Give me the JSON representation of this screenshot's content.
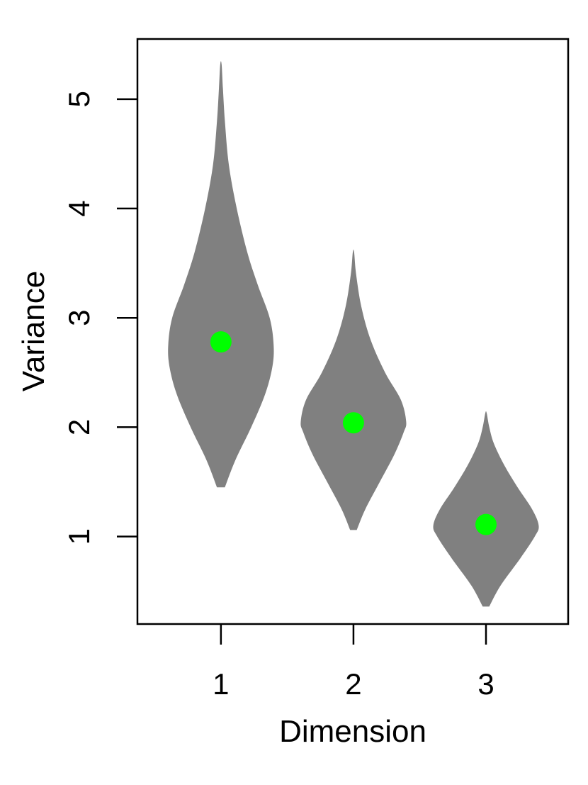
{
  "chart_data": {
    "type": "violin",
    "title": "",
    "xlabel": "Dimension",
    "ylabel": "Variance",
    "x_ticks": [
      "1",
      "2",
      "3"
    ],
    "y_ticks": [
      "1",
      "2",
      "3",
      "4",
      "5"
    ],
    "xlim": [
      0.37,
      3.62
    ],
    "ylim": [
      0.2,
      5.55
    ],
    "grid": false,
    "legend": "none",
    "colors": {
      "violin_fill": "#808080",
      "mean_marker": "#00ff00",
      "axis": "#000000",
      "background": "#ffffff"
    },
    "series": [
      {
        "category": "1",
        "min": 1.45,
        "max": 5.32,
        "mean": 2.78,
        "density_profile": [
          [
            1.45,
            0.06
          ],
          [
            1.7,
            0.22
          ],
          [
            2.0,
            0.46
          ],
          [
            2.3,
            0.67
          ],
          [
            2.55,
            0.78
          ],
          [
            2.75,
            0.8
          ],
          [
            3.0,
            0.74
          ],
          [
            3.3,
            0.56
          ],
          [
            3.6,
            0.4
          ],
          [
            4.0,
            0.24
          ],
          [
            4.4,
            0.12
          ],
          [
            4.8,
            0.06
          ],
          [
            5.1,
            0.03
          ],
          [
            5.32,
            0.01
          ]
        ]
      },
      {
        "category": "2",
        "min": 1.06,
        "max": 3.6,
        "mean": 2.04,
        "density_profile": [
          [
            1.06,
            0.05
          ],
          [
            1.25,
            0.18
          ],
          [
            1.5,
            0.4
          ],
          [
            1.75,
            0.62
          ],
          [
            1.95,
            0.76
          ],
          [
            2.05,
            0.8
          ],
          [
            2.25,
            0.72
          ],
          [
            2.5,
            0.48
          ],
          [
            2.8,
            0.26
          ],
          [
            3.1,
            0.12
          ],
          [
            3.4,
            0.04
          ],
          [
            3.6,
            0.01
          ]
        ]
      },
      {
        "category": "3",
        "min": 0.36,
        "max": 2.13,
        "mean": 1.11,
        "density_profile": [
          [
            0.36,
            0.05
          ],
          [
            0.55,
            0.22
          ],
          [
            0.8,
            0.52
          ],
          [
            1.0,
            0.74
          ],
          [
            1.1,
            0.8
          ],
          [
            1.25,
            0.7
          ],
          [
            1.45,
            0.48
          ],
          [
            1.65,
            0.28
          ],
          [
            1.85,
            0.12
          ],
          [
            2.0,
            0.05
          ],
          [
            2.13,
            0.01
          ]
        ]
      }
    ]
  }
}
